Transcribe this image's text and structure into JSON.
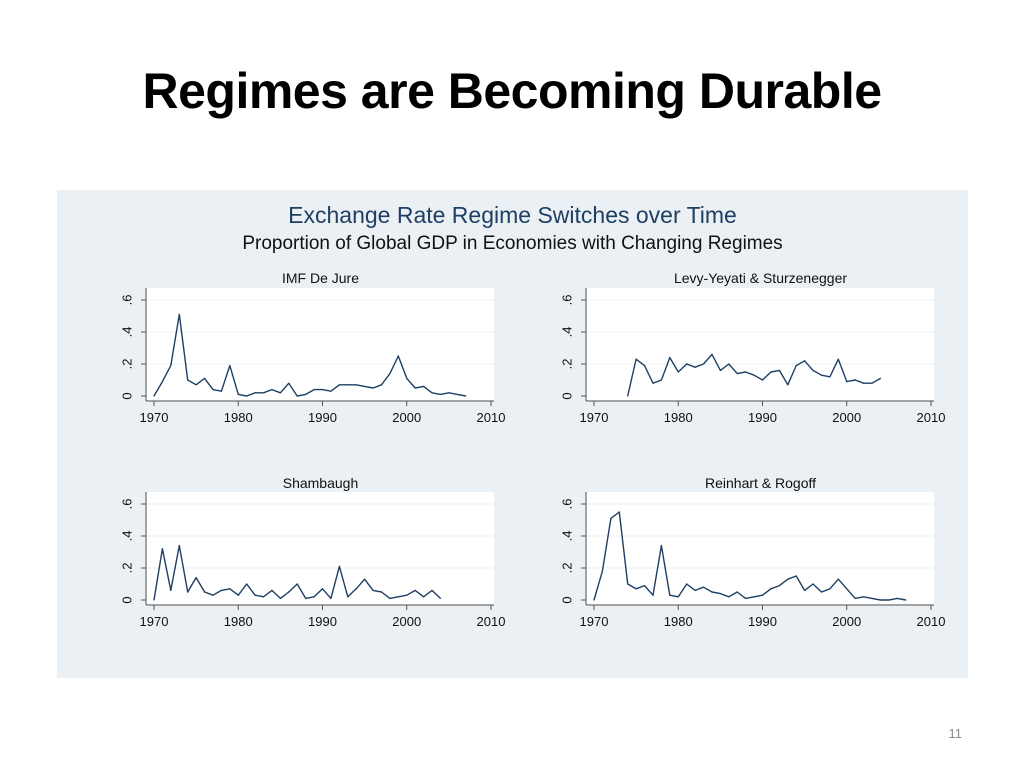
{
  "slide": {
    "title": "Regimes are Becoming Durable",
    "page_number": "11"
  },
  "figure": {
    "title": "Exchange Rate Regime Switches over Time",
    "subtitle": "Proportion of Global GDP in Economies with Changing Regimes"
  },
  "colors": {
    "line": "#1f3f63",
    "panel": "#eaf0f3",
    "plot_bg": "#ffffff",
    "grid": "#eaf0f3",
    "title": "#1f3f63"
  },
  "chart_data": [
    {
      "type": "line",
      "title": "IMF De Jure",
      "xlim": [
        1970,
        2010
      ],
      "ylim": [
        0,
        0.6
      ],
      "xticks": [
        1970,
        1980,
        1990,
        2000,
        2010
      ],
      "xtick_labels": [
        "1970",
        "1980",
        "1990",
        "2000",
        "2010"
      ],
      "yticks": [
        0,
        0.2,
        0.4,
        0.6
      ],
      "ytick_labels": [
        "0",
        ".2",
        ".4",
        ".6"
      ],
      "x": [
        1970,
        1971,
        1972,
        1973,
        1974,
        1975,
        1976,
        1977,
        1978,
        1979,
        1980,
        1981,
        1982,
        1983,
        1984,
        1985,
        1986,
        1987,
        1988,
        1989,
        1990,
        1991,
        1992,
        1993,
        1994,
        1995,
        1996,
        1997,
        1998,
        1999,
        2000,
        2001,
        2002,
        2003,
        2004,
        2005,
        2006,
        2007
      ],
      "y": [
        0.0,
        0.09,
        0.19,
        0.51,
        0.1,
        0.07,
        0.11,
        0.04,
        0.03,
        0.19,
        0.01,
        0.0,
        0.02,
        0.02,
        0.04,
        0.02,
        0.08,
        0.0,
        0.01,
        0.04,
        0.04,
        0.03,
        0.07,
        0.07,
        0.07,
        0.06,
        0.05,
        0.07,
        0.14,
        0.25,
        0.11,
        0.05,
        0.06,
        0.02,
        0.01,
        0.02,
        0.01,
        0.0
      ]
    },
    {
      "type": "line",
      "title": "Levy-Yeyati & Sturzenegger",
      "xlim": [
        1970,
        2010
      ],
      "ylim": [
        0,
        0.6
      ],
      "xticks": [
        1970,
        1980,
        1990,
        2000,
        2010
      ],
      "xtick_labels": [
        "1970",
        "1980",
        "1990",
        "2000",
        "2010"
      ],
      "yticks": [
        0,
        0.2,
        0.4,
        0.6
      ],
      "ytick_labels": [
        "0",
        ".2",
        ".4",
        ".6"
      ],
      "x": [
        1974,
        1975,
        1976,
        1977,
        1978,
        1979,
        1980,
        1981,
        1982,
        1983,
        1984,
        1985,
        1986,
        1987,
        1988,
        1989,
        1990,
        1991,
        1992,
        1993,
        1994,
        1995,
        1996,
        1997,
        1998,
        1999,
        2000,
        2001,
        2002,
        2003,
        2004
      ],
      "y": [
        0.0,
        0.23,
        0.19,
        0.08,
        0.1,
        0.24,
        0.15,
        0.2,
        0.18,
        0.2,
        0.26,
        0.16,
        0.2,
        0.14,
        0.15,
        0.13,
        0.1,
        0.15,
        0.16,
        0.07,
        0.19,
        0.22,
        0.16,
        0.13,
        0.12,
        0.23,
        0.09,
        0.1,
        0.08,
        0.08,
        0.11
      ]
    },
    {
      "type": "line",
      "title": "Shambaugh",
      "xlim": [
        1970,
        2010
      ],
      "ylim": [
        0,
        0.6
      ],
      "xticks": [
        1970,
        1980,
        1990,
        2000,
        2010
      ],
      "xtick_labels": [
        "1970",
        "1980",
        "1990",
        "2000",
        "2010"
      ],
      "yticks": [
        0,
        0.2,
        0.4,
        0.6
      ],
      "ytick_labels": [
        "0",
        ".2",
        ".4",
        ".6"
      ],
      "x": [
        1970,
        1971,
        1972,
        1973,
        1974,
        1975,
        1976,
        1977,
        1978,
        1979,
        1980,
        1981,
        1982,
        1983,
        1984,
        1985,
        1986,
        1987,
        1988,
        1989,
        1990,
        1991,
        1992,
        1993,
        1994,
        1995,
        1996,
        1997,
        1998,
        1999,
        2000,
        2001,
        2002,
        2003,
        2004
      ],
      "y": [
        0.0,
        0.32,
        0.06,
        0.34,
        0.05,
        0.14,
        0.05,
        0.03,
        0.06,
        0.07,
        0.03,
        0.1,
        0.03,
        0.02,
        0.06,
        0.01,
        0.05,
        0.1,
        0.01,
        0.02,
        0.07,
        0.01,
        0.21,
        0.02,
        0.07,
        0.13,
        0.06,
        0.05,
        0.01,
        0.02,
        0.03,
        0.06,
        0.02,
        0.06,
        0.01
      ]
    },
    {
      "type": "line",
      "title": "Reinhart & Rogoff",
      "xlim": [
        1970,
        2010
      ],
      "ylim": [
        0,
        0.6
      ],
      "xticks": [
        1970,
        1980,
        1990,
        2000,
        2010
      ],
      "xtick_labels": [
        "1970",
        "1980",
        "1990",
        "2000",
        "2010"
      ],
      "yticks": [
        0,
        0.2,
        0.4,
        0.6
      ],
      "ytick_labels": [
        "0",
        ".2",
        ".4",
        ".6"
      ],
      "x": [
        1970,
        1971,
        1972,
        1973,
        1974,
        1975,
        1976,
        1977,
        1978,
        1979,
        1980,
        1981,
        1982,
        1983,
        1984,
        1985,
        1986,
        1987,
        1988,
        1989,
        1990,
        1991,
        1992,
        1993,
        1994,
        1995,
        1996,
        1997,
        1998,
        1999,
        2000,
        2001,
        2002,
        2003,
        2004,
        2005,
        2006,
        2007
      ],
      "y": [
        0.0,
        0.18,
        0.51,
        0.55,
        0.1,
        0.07,
        0.09,
        0.03,
        0.34,
        0.03,
        0.02,
        0.1,
        0.06,
        0.08,
        0.05,
        0.04,
        0.02,
        0.05,
        0.01,
        0.02,
        0.03,
        0.07,
        0.09,
        0.13,
        0.15,
        0.06,
        0.1,
        0.05,
        0.07,
        0.13,
        0.07,
        0.01,
        0.02,
        0.01,
        0.0,
        0.0,
        0.01,
        0.0
      ]
    }
  ]
}
